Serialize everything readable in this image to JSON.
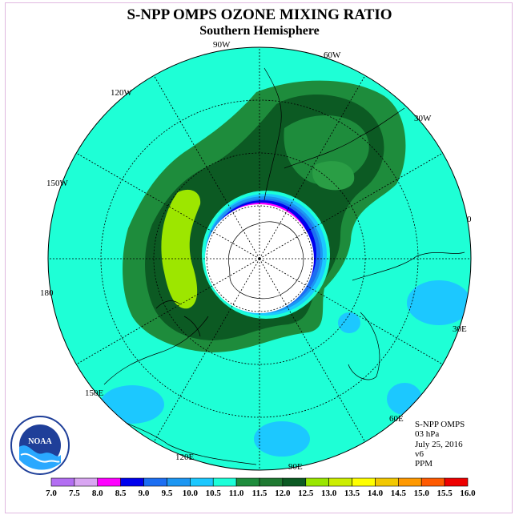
{
  "title": "S-NPP OMPS OZONE MIXING RATIO",
  "subtitle": "Southern Hemisphere",
  "longitude_labels": [
    "90W",
    "60W",
    "30W",
    "0",
    "30E",
    "60E",
    "90E",
    "120E",
    "150E",
    "180",
    "150W",
    "120W"
  ],
  "info": {
    "instrument": "S-NPP OMPS",
    "level": "03 hPa",
    "date": "July 25, 2016",
    "version": "v6",
    "units": "PPM"
  },
  "logo_text": "NOAA",
  "colorbar": {
    "ticks": [
      "7.0",
      "7.5",
      "8.0",
      "8.5",
      "9.0",
      "9.5",
      "10.0",
      "10.5",
      "11.0",
      "11.5",
      "12.0",
      "12.5",
      "13.0",
      "13.5",
      "14.0",
      "14.5",
      "15.0",
      "15.5",
      "16.0"
    ],
    "colors": [
      "#b36ef2",
      "#d9a6f2",
      "#ff00ff",
      "#0000ee",
      "#1c6ef2",
      "#1c96f2",
      "#1cc8ff",
      "#1cffd9",
      "#1e8c3c",
      "#1f7a32",
      "#0c5a23",
      "#99e600",
      "#ccee00",
      "#ffff00",
      "#f2c800",
      "#ff9900",
      "#ff5a00",
      "#ee0000",
      "#8c4a2e"
    ]
  },
  "colors": {
    "ocean_background": "#1effd6",
    "dark_green": "#0d5c2a",
    "mid_green": "#1e8c3c",
    "light_green": "#2a9e45",
    "lime": "#9de600",
    "cyan_low": "#1cc8ff",
    "blue": "#0000ee",
    "magenta": "#ff00ff",
    "polar_night": "#ffffff"
  }
}
